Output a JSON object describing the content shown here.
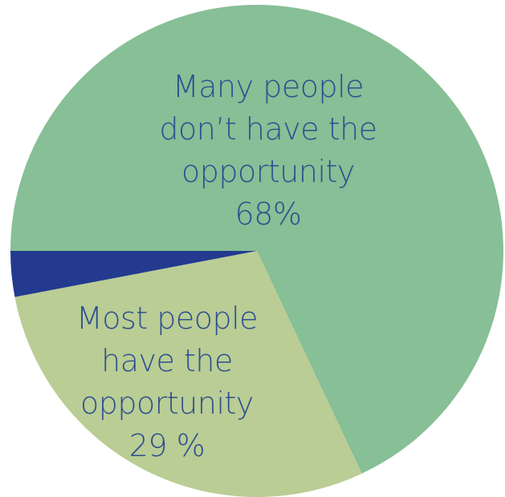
{
  "chart_data": {
    "type": "pie",
    "colors": {
      "label_text": "#2e4f8f"
    },
    "slices": [
      {
        "label_lines": [
          "Many people",
          "don’t have the",
          "opportunity",
          "68%"
        ],
        "value": 68,
        "color": "#87bf96"
      },
      {
        "label_lines": [
          "Most people",
          "have the",
          "opportunity",
          "29 %"
        ],
        "value": 29,
        "color": "#b9cd95"
      },
      {
        "label_lines": [],
        "value": 3,
        "color": "#233a8f"
      }
    ]
  }
}
